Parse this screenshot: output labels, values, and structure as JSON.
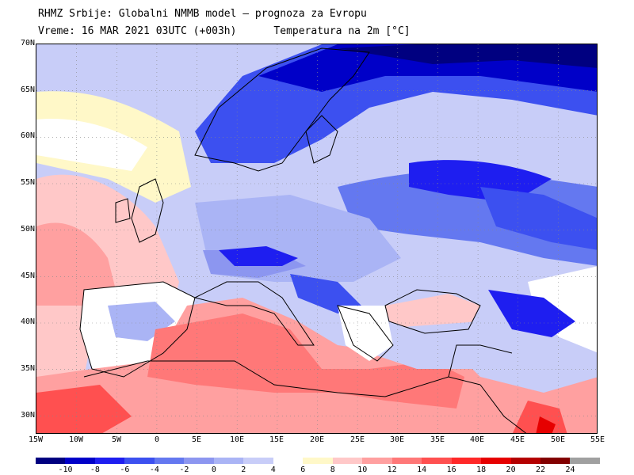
{
  "title_line1": "RHMZ Srbije: Globalni NMMB model — prognoza za Evropu",
  "title_line2": "Vreme: 16 MAR 2021 03UTC (+003h)      Temperatura na 2m [°C]",
  "lat_labels": [
    "70N",
    "65N",
    "60N",
    "55N",
    "50N",
    "45N",
    "40N",
    "35N",
    "30N"
  ],
  "lon_labels": [
    "15W",
    "10W",
    "5W",
    "0",
    "5E",
    "10E",
    "15E",
    "20E",
    "25E",
    "30E",
    "35E",
    "40E",
    "45E",
    "50E",
    "55E"
  ],
  "colorbar": {
    "labels": [
      "-10",
      "-8",
      "-6",
      "-4",
      "-2",
      "0",
      "2",
      "4",
      "6",
      "8",
      "10",
      "12",
      "14",
      "16",
      "18",
      "20",
      "22",
      "24"
    ],
    "colors": [
      "#000080",
      "#0000c8",
      "#1e1ef0",
      "#3c50f0",
      "#6478f0",
      "#8c96f0",
      "#aab4f5",
      "#c8cdf8",
      "#ffffff",
      "#fff8c8",
      "#ffc8c8",
      "#ffa0a0",
      "#ff7878",
      "#ff5050",
      "#ff2828",
      "#e60000",
      "#b40000",
      "#820000",
      "#a0a0a0"
    ]
  },
  "map": {
    "lon_range": [
      -15,
      55
    ],
    "lat_range": [
      28,
      70
    ],
    "region": "Europe",
    "variable": "2m temperature"
  }
}
